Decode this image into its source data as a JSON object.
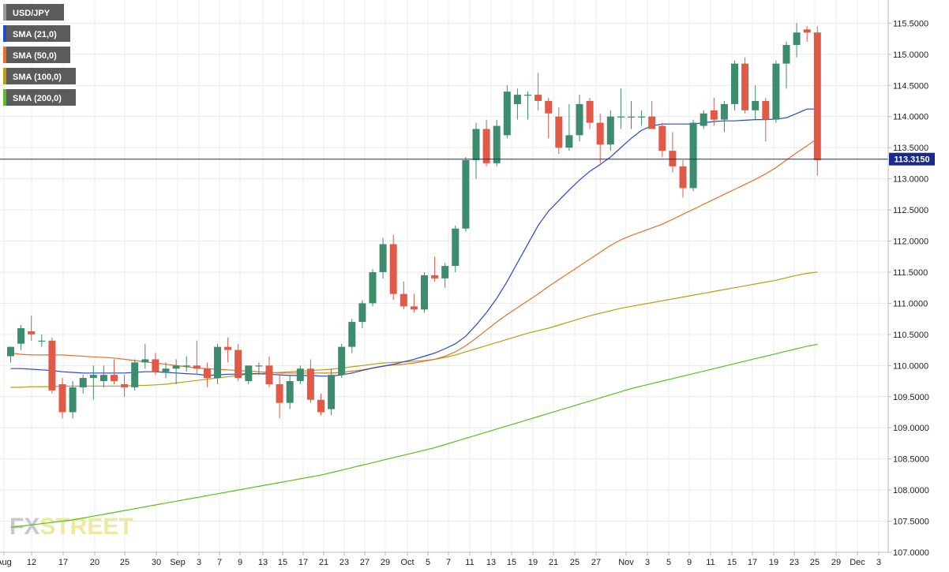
{
  "chart_data": {
    "type": "candlestick",
    "symbol": "USD/JPY",
    "current_price": "113.3150",
    "ylim": [
      107.0,
      115.7
    ],
    "y_ticks": [
      "115.5000",
      "115.0000",
      "114.5000",
      "114.0000",
      "113.5000",
      "113.0000",
      "112.5000",
      "112.0000",
      "111.5000",
      "111.0000",
      "110.5000",
      "110.0000",
      "109.5000",
      "109.0000",
      "108.5000",
      "108.0000",
      "107.5000",
      "107.0000"
    ],
    "x_ticks": [
      "Aug",
      "12",
      "17",
      "20",
      "25",
      "30",
      "Sep",
      "3",
      "7",
      "9",
      "13",
      "15",
      "17",
      "21",
      "23",
      "27",
      "29",
      "Oct",
      "5",
      "7",
      "11",
      "13",
      "15",
      "19",
      "21",
      "25",
      "27",
      "Nov",
      "3",
      "5",
      "9",
      "11",
      "15",
      "17",
      "19",
      "23",
      "25",
      "29",
      "Dec",
      "3"
    ],
    "colors": {
      "up": "#3d8c6e",
      "down": "#e05a47",
      "sma21": "#2548d6",
      "sma50": "#e8702a",
      "sma100": "#b8a010",
      "sma200": "#5cbf1f",
      "price_line": "#1a2a8c"
    },
    "legend": [
      {
        "label": "USD/JPY",
        "color": "#9a9a9a"
      },
      {
        "label": "SMA (21,0)",
        "color": "#2548d6"
      },
      {
        "label": "SMA (50,0)",
        "color": "#e8702a"
      },
      {
        "label": "SMA (100,0)",
        "color": "#b8a010"
      },
      {
        "label": "SMA (200,0)",
        "color": "#5cbf1f"
      }
    ],
    "watermark": {
      "fx": "FX",
      "street": "STREET"
    },
    "candles": [
      {
        "o": 110.15,
        "h": 110.3,
        "l": 110.05,
        "c": 110.3
      },
      {
        "o": 110.35,
        "h": 110.65,
        "l": 110.25,
        "c": 110.6
      },
      {
        "o": 110.55,
        "h": 110.8,
        "l": 110.4,
        "c": 110.5
      },
      {
        "o": 110.4,
        "h": 110.5,
        "l": 110.3,
        "c": 110.4
      },
      {
        "o": 110.4,
        "h": 110.45,
        "l": 109.55,
        "c": 109.6
      },
      {
        "o": 109.7,
        "h": 109.8,
        "l": 109.15,
        "c": 109.25
      },
      {
        "o": 109.25,
        "h": 109.75,
        "l": 109.15,
        "c": 109.65
      },
      {
        "o": 109.65,
        "h": 109.85,
        "l": 109.55,
        "c": 109.8
      },
      {
        "o": 109.8,
        "h": 110.0,
        "l": 109.45,
        "c": 109.85
      },
      {
        "o": 109.75,
        "h": 110.0,
        "l": 109.65,
        "c": 109.85
      },
      {
        "o": 109.85,
        "h": 110.1,
        "l": 109.7,
        "c": 109.75
      },
      {
        "o": 109.7,
        "h": 109.85,
        "l": 109.5,
        "c": 109.65
      },
      {
        "o": 109.65,
        "h": 110.1,
        "l": 109.6,
        "c": 110.05
      },
      {
        "o": 110.05,
        "h": 110.35,
        "l": 109.95,
        "c": 110.1
      },
      {
        "o": 110.1,
        "h": 110.2,
        "l": 109.85,
        "c": 109.9
      },
      {
        "o": 109.9,
        "h": 110.05,
        "l": 109.8,
        "c": 109.95
      },
      {
        "o": 109.95,
        "h": 110.1,
        "l": 109.7,
        "c": 110.0
      },
      {
        "o": 110.0,
        "h": 110.15,
        "l": 109.9,
        "c": 110.0
      },
      {
        "o": 110.0,
        "h": 110.4,
        "l": 109.85,
        "c": 109.95
      },
      {
        "o": 109.95,
        "h": 110.05,
        "l": 109.65,
        "c": 109.8
      },
      {
        "o": 109.8,
        "h": 110.35,
        "l": 109.7,
        "c": 110.3
      },
      {
        "o": 110.3,
        "h": 110.45,
        "l": 110.05,
        "c": 110.25
      },
      {
        "o": 110.25,
        "h": 110.35,
        "l": 109.75,
        "c": 109.8
      },
      {
        "o": 109.75,
        "h": 110.0,
        "l": 109.7,
        "c": 110.0
      },
      {
        "o": 110.0,
        "h": 110.05,
        "l": 109.85,
        "c": 110.0
      },
      {
        "o": 110.0,
        "h": 110.15,
        "l": 109.65,
        "c": 109.7
      },
      {
        "o": 109.7,
        "h": 109.85,
        "l": 109.15,
        "c": 109.4
      },
      {
        "o": 109.4,
        "h": 109.85,
        "l": 109.3,
        "c": 109.75
      },
      {
        "o": 109.75,
        "h": 110.0,
        "l": 109.7,
        "c": 109.95
      },
      {
        "o": 109.95,
        "h": 110.1,
        "l": 109.4,
        "c": 109.45
      },
      {
        "o": 109.45,
        "h": 109.55,
        "l": 109.2,
        "c": 109.25
      },
      {
        "o": 109.3,
        "h": 109.95,
        "l": 109.2,
        "c": 109.85
      },
      {
        "o": 109.85,
        "h": 110.35,
        "l": 109.8,
        "c": 110.3
      },
      {
        "o": 110.3,
        "h": 110.75,
        "l": 110.2,
        "c": 110.7
      },
      {
        "o": 110.7,
        "h": 111.05,
        "l": 110.6,
        "c": 111.0
      },
      {
        "o": 111.0,
        "h": 111.55,
        "l": 110.95,
        "c": 111.5
      },
      {
        "o": 111.5,
        "h": 112.05,
        "l": 111.4,
        "c": 111.95
      },
      {
        "o": 111.95,
        "h": 112.1,
        "l": 111.05,
        "c": 111.15
      },
      {
        "o": 111.15,
        "h": 111.35,
        "l": 110.9,
        "c": 110.95
      },
      {
        "o": 110.95,
        "h": 111.15,
        "l": 110.85,
        "c": 110.9
      },
      {
        "o": 110.9,
        "h": 111.5,
        "l": 110.85,
        "c": 111.45
      },
      {
        "o": 111.45,
        "h": 111.75,
        "l": 111.35,
        "c": 111.4
      },
      {
        "o": 111.4,
        "h": 111.65,
        "l": 111.25,
        "c": 111.6
      },
      {
        "o": 111.6,
        "h": 112.25,
        "l": 111.5,
        "c": 112.2
      },
      {
        "o": 112.2,
        "h": 113.35,
        "l": 112.15,
        "c": 113.3
      },
      {
        "o": 113.3,
        "h": 113.9,
        "l": 113.0,
        "c": 113.8
      },
      {
        "o": 113.8,
        "h": 113.95,
        "l": 113.2,
        "c": 113.25
      },
      {
        "o": 113.25,
        "h": 113.95,
        "l": 113.2,
        "c": 113.85
      },
      {
        "o": 113.7,
        "h": 114.5,
        "l": 113.65,
        "c": 114.4
      },
      {
        "o": 114.2,
        "h": 114.45,
        "l": 113.95,
        "c": 114.35
      },
      {
        "o": 114.35,
        "h": 114.4,
        "l": 113.95,
        "c": 114.35
      },
      {
        "o": 114.35,
        "h": 114.7,
        "l": 114.1,
        "c": 114.25
      },
      {
        "o": 114.25,
        "h": 114.3,
        "l": 113.65,
        "c": 114.05
      },
      {
        "o": 114.0,
        "h": 114.15,
        "l": 113.4,
        "c": 113.5
      },
      {
        "o": 113.5,
        "h": 114.2,
        "l": 113.45,
        "c": 113.7
      },
      {
        "o": 113.7,
        "h": 114.35,
        "l": 113.6,
        "c": 114.2
      },
      {
        "o": 114.25,
        "h": 114.3,
        "l": 113.8,
        "c": 113.9
      },
      {
        "o": 113.9,
        "h": 114.05,
        "l": 113.25,
        "c": 113.55
      },
      {
        "o": 113.55,
        "h": 114.1,
        "l": 113.45,
        "c": 114.0
      },
      {
        "o": 114.0,
        "h": 114.45,
        "l": 113.8,
        "c": 114.0
      },
      {
        "o": 114.0,
        "h": 114.25,
        "l": 113.8,
        "c": 114.0
      },
      {
        "o": 114.0,
        "h": 114.1,
        "l": 113.85,
        "c": 114.0
      },
      {
        "o": 114.0,
        "h": 114.25,
        "l": 113.8,
        "c": 113.8
      },
      {
        "o": 113.85,
        "h": 113.9,
        "l": 113.35,
        "c": 113.45
      },
      {
        "o": 113.45,
        "h": 113.75,
        "l": 113.1,
        "c": 113.2
      },
      {
        "o": 113.2,
        "h": 113.3,
        "l": 112.7,
        "c": 112.85
      },
      {
        "o": 112.85,
        "h": 113.95,
        "l": 112.8,
        "c": 113.9
      },
      {
        "o": 113.85,
        "h": 114.1,
        "l": 113.8,
        "c": 114.05
      },
      {
        "o": 114.1,
        "h": 114.3,
        "l": 113.85,
        "c": 113.95
      },
      {
        "o": 113.95,
        "h": 114.25,
        "l": 113.75,
        "c": 114.2
      },
      {
        "o": 114.2,
        "h": 114.9,
        "l": 114.1,
        "c": 114.85
      },
      {
        "o": 114.85,
        "h": 114.95,
        "l": 114.05,
        "c": 114.1
      },
      {
        "o": 114.1,
        "h": 114.5,
        "l": 113.95,
        "c": 114.25
      },
      {
        "o": 114.25,
        "h": 114.3,
        "l": 113.6,
        "c": 113.95
      },
      {
        "o": 113.95,
        "h": 114.9,
        "l": 113.9,
        "c": 114.85
      },
      {
        "o": 114.85,
        "h": 115.2,
        "l": 114.45,
        "c": 115.15
      },
      {
        "o": 115.15,
        "h": 115.5,
        "l": 114.95,
        "c": 115.35
      },
      {
        "o": 115.4,
        "h": 115.45,
        "l": 115.2,
        "c": 115.35
      },
      {
        "o": 115.35,
        "h": 115.45,
        "l": 113.05,
        "c": 113.3
      }
    ],
    "sma21": [
      109.95,
      109.95,
      109.94,
      109.93,
      109.92,
      109.9,
      109.89,
      109.88,
      109.88,
      109.88,
      109.88,
      109.88,
      109.89,
      109.9,
      109.9,
      109.89,
      109.88,
      109.87,
      109.86,
      109.84,
      109.85,
      109.86,
      109.86,
      109.87,
      109.87,
      109.86,
      109.85,
      109.84,
      109.84,
      109.84,
      109.83,
      109.83,
      109.85,
      109.88,
      109.92,
      109.96,
      109.99,
      110.02,
      110.06,
      110.1,
      110.15,
      110.2,
      110.27,
      110.35,
      110.47,
      110.65,
      110.85,
      111.08,
      111.35,
      111.65,
      111.95,
      112.25,
      112.48,
      112.65,
      112.82,
      112.98,
      113.12,
      113.23,
      113.35,
      113.5,
      113.65,
      113.78,
      113.85,
      113.88,
      113.88,
      113.88,
      113.88,
      113.9,
      113.92,
      113.93,
      113.93,
      113.94,
      113.95,
      113.95,
      113.96,
      113.98,
      114.05,
      114.12,
      114.12
    ],
    "sma50": [
      110.2,
      110.18,
      110.17,
      110.17,
      110.17,
      110.17,
      110.16,
      110.15,
      110.14,
      110.13,
      110.12,
      110.1,
      110.08,
      110.06,
      110.04,
      110.02,
      110.0,
      109.98,
      109.96,
      109.95,
      109.94,
      109.93,
      109.92,
      109.91,
      109.9,
      109.89,
      109.88,
      109.88,
      109.88,
      109.88,
      109.88,
      109.88,
      109.89,
      109.91,
      109.93,
      109.96,
      109.99,
      110.01,
      110.02,
      110.04,
      110.07,
      110.1,
      110.15,
      110.22,
      110.32,
      110.44,
      110.57,
      110.7,
      110.82,
      110.93,
      111.04,
      111.15,
      111.27,
      111.38,
      111.49,
      111.6,
      111.71,
      111.82,
      111.93,
      112.02,
      112.09,
      112.15,
      112.21,
      112.27,
      112.35,
      112.43,
      112.51,
      112.59,
      112.67,
      112.75,
      112.83,
      112.91,
      112.99,
      113.08,
      113.18,
      113.3,
      113.42,
      113.53,
      113.65
    ],
    "sma100": [
      109.65,
      109.65,
      109.66,
      109.66,
      109.66,
      109.67,
      109.67,
      109.67,
      109.67,
      109.67,
      109.67,
      109.67,
      109.68,
      109.68,
      109.69,
      109.7,
      109.72,
      109.74,
      109.76,
      109.78,
      109.8,
      109.82,
      109.84,
      109.86,
      109.87,
      109.88,
      109.89,
      109.9,
      109.91,
      109.92,
      109.93,
      109.94,
      109.96,
      109.98,
      110.0,
      110.02,
      110.04,
      110.05,
      110.06,
      110.07,
      110.08,
      110.1,
      110.13,
      110.17,
      110.22,
      110.27,
      110.32,
      110.37,
      110.42,
      110.47,
      110.52,
      110.56,
      110.6,
      110.65,
      110.7,
      110.75,
      110.8,
      110.84,
      110.88,
      110.92,
      110.95,
      110.98,
      111.01,
      111.04,
      111.07,
      111.1,
      111.13,
      111.16,
      111.19,
      111.22,
      111.25,
      111.28,
      111.31,
      111.34,
      111.37,
      111.41,
      111.45,
      111.48,
      111.5
    ],
    "sma200": [
      107.4,
      107.42,
      107.44,
      107.46,
      107.48,
      107.5,
      107.52,
      107.55,
      107.58,
      107.61,
      107.64,
      107.67,
      107.7,
      107.73,
      107.76,
      107.79,
      107.82,
      107.85,
      107.88,
      107.91,
      107.94,
      107.97,
      108.0,
      108.03,
      108.06,
      108.09,
      108.12,
      108.15,
      108.18,
      108.21,
      108.24,
      108.28,
      108.32,
      108.36,
      108.4,
      108.44,
      108.48,
      108.52,
      108.56,
      108.6,
      108.64,
      108.68,
      108.73,
      108.78,
      108.83,
      108.88,
      108.93,
      108.98,
      109.03,
      109.08,
      109.13,
      109.18,
      109.23,
      109.28,
      109.33,
      109.38,
      109.43,
      109.48,
      109.53,
      109.58,
      109.63,
      109.67,
      109.71,
      109.75,
      109.79,
      109.83,
      109.87,
      109.91,
      109.95,
      109.99,
      110.03,
      110.07,
      110.11,
      110.15,
      110.19,
      110.23,
      110.27,
      110.31,
      110.34
    ]
  }
}
